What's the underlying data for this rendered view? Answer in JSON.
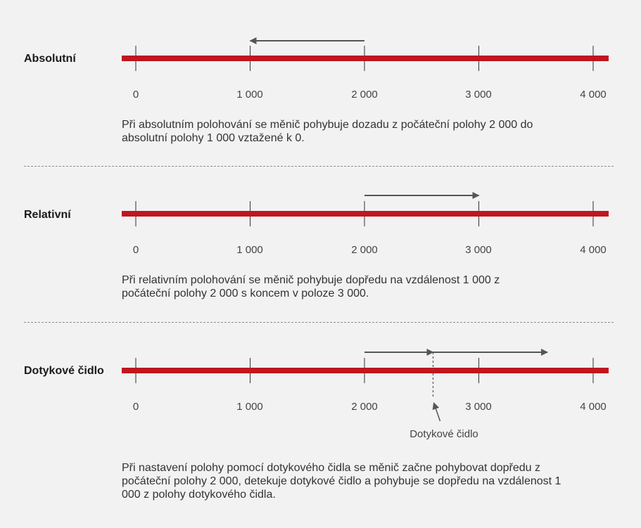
{
  "colors": {
    "axis_line": "#c0161f",
    "arrow": "#555555",
    "tick": "#333333",
    "background": "#f2f2f2"
  },
  "ticks": [
    "0",
    "1 000",
    "2 000",
    "3 000",
    "4 000"
  ],
  "sections": [
    {
      "label": "Absolutní",
      "description": "Při absolutním polohování se měnič pohybuje dozadu z počáteční polohy 2 000 do absolutní polohy 1 000 vztažené k 0.",
      "arrows": [
        {
          "from": 2000,
          "to": 1000
        }
      ]
    },
    {
      "label": "Relativní",
      "description": "Při relativním polohování se měnič pohybuje dopředu na vzdálenost 1 000 z počáteční polohy 2 000 s koncem v poloze 3 000.",
      "arrows": [
        {
          "from": 2000,
          "to": 3000
        }
      ]
    },
    {
      "label": "Dotykové čidlo",
      "description": "Při nastavení polohy pomocí dotykového čidla se měnič začne pohybovat dopředu z počáteční polohy 2 000, detekuje dotykové čidlo a pohybuje se dopředu na vzdálenost 1 000 z polohy dotykového čidla.",
      "arrows": [
        {
          "from": 2000,
          "to": 2600
        },
        {
          "from": 2600,
          "to": 3600
        }
      ],
      "sensor_position": 2600,
      "sensor_label": "Dotykové čidlo"
    }
  ]
}
